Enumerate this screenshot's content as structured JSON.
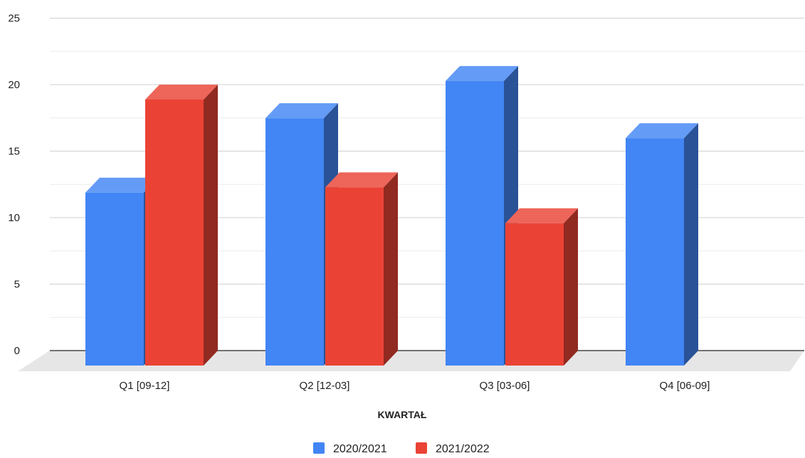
{
  "chart_data": {
    "type": "bar",
    "style": "3d",
    "title": "",
    "xlabel": "KWARTAŁ",
    "ylabel": "",
    "ylim": [
      0,
      25
    ],
    "yticks": [
      0,
      5,
      10,
      15,
      20,
      25
    ],
    "grid": true,
    "legend_position": "bottom",
    "categories": [
      "Q1 [09-12]",
      "Q2 [12-03]",
      "Q3 [03-06]",
      "Q4 [06-09]"
    ],
    "series": [
      {
        "name": "2020/2021",
        "color": "#4285f4",
        "values": [
          13,
          18.6,
          21.4,
          17.1
        ]
      },
      {
        "name": "2021/2022",
        "color": "#ea4335",
        "values": [
          20,
          13.4,
          10.7,
          null
        ]
      }
    ]
  }
}
